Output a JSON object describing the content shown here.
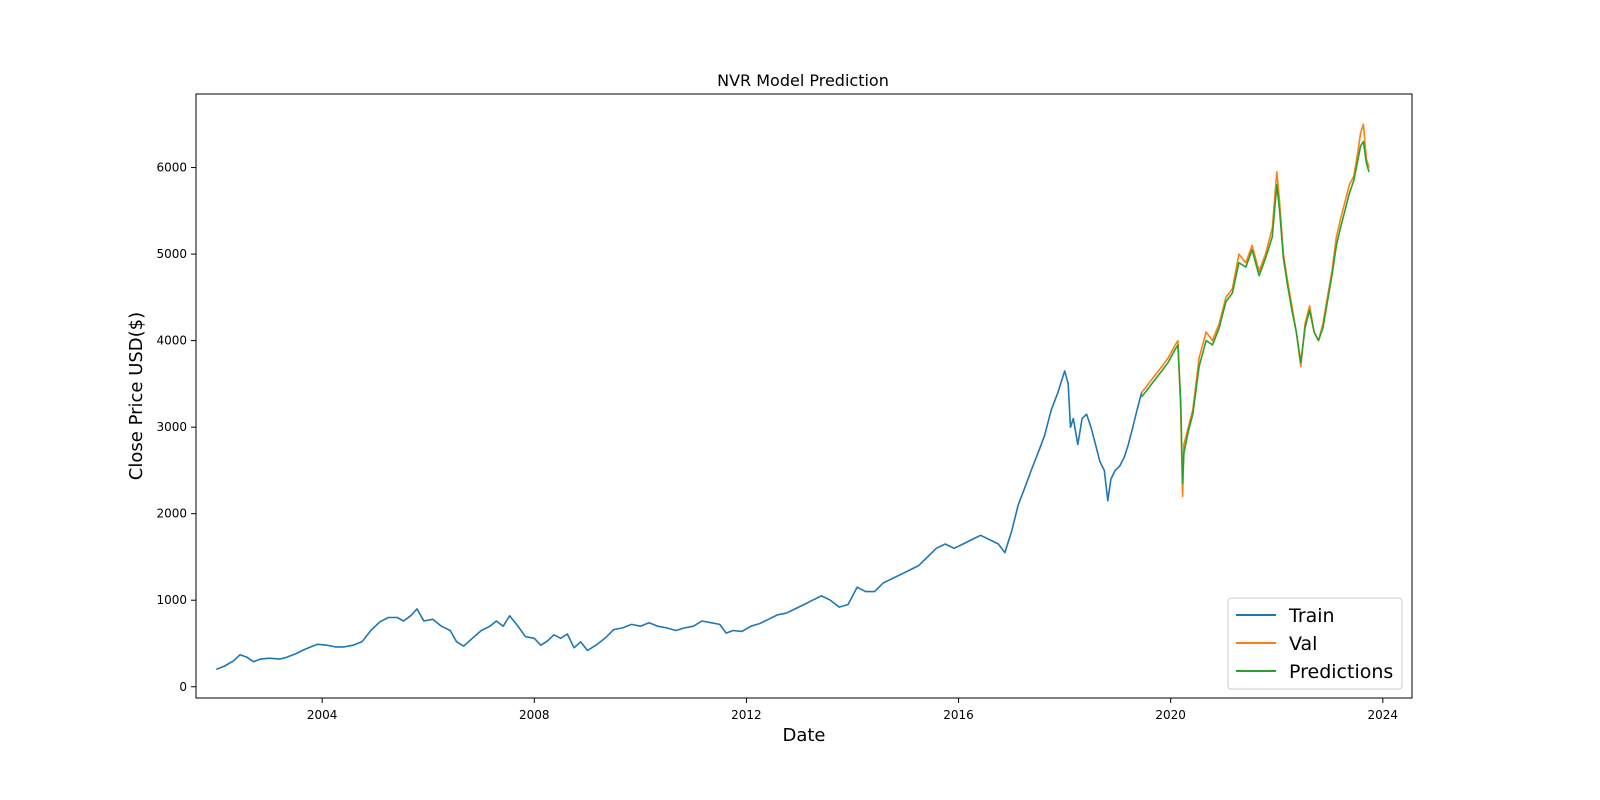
{
  "chart_data": {
    "type": "line",
    "title": "NVR Model Prediction",
    "xlabel": "Date",
    "ylabel": "Close Price USD($)",
    "x_axis_type": "date",
    "xlim": [
      "2001-08-15",
      "2024-07-20"
    ],
    "ylim": [
      -130,
      6850
    ],
    "x_ticks": [
      "2004",
      "2008",
      "2012",
      "2016",
      "2020",
      "2024"
    ],
    "x_tick_dates": [
      "2004-01-01",
      "2008-01-01",
      "2012-01-01",
      "2016-01-01",
      "2020-01-01",
      "2024-01-01"
    ],
    "y_ticks": [
      0,
      1000,
      2000,
      3000,
      4000,
      5000,
      6000
    ],
    "grid": false,
    "legend_position": "lower-right",
    "colors": {
      "Train": "#1f77b4",
      "Val": "#ff7f0e",
      "Predictions": "#2ca02c"
    },
    "series": [
      {
        "name": "Train",
        "x": [
          "2002-01-02",
          "2002-03-01",
          "2002-05-01",
          "2002-06-15",
          "2002-08-01",
          "2002-09-15",
          "2002-11-01",
          "2003-01-01",
          "2003-03-15",
          "2003-05-01",
          "2003-07-01",
          "2003-09-01",
          "2003-10-15",
          "2003-12-01",
          "2004-02-01",
          "2004-04-01",
          "2004-06-01",
          "2004-08-01",
          "2004-10-01",
          "2004-12-01",
          "2005-02-01",
          "2005-04-01",
          "2005-06-01",
          "2005-07-15",
          "2005-09-01",
          "2005-10-15",
          "2005-12-01",
          "2006-02-01",
          "2006-04-01",
          "2006-06-01",
          "2006-07-15",
          "2006-09-01",
          "2006-11-01",
          "2007-01-01",
          "2007-03-01",
          "2007-04-15",
          "2007-06-01",
          "2007-07-15",
          "2007-09-01",
          "2007-11-01",
          "2008-01-01",
          "2008-02-15",
          "2008-04-01",
          "2008-05-15",
          "2008-07-01",
          "2008-08-15",
          "2008-10-01",
          "2008-11-15",
          "2009-01-01",
          "2009-03-01",
          "2009-05-01",
          "2009-07-01",
          "2009-09-01",
          "2009-11-01",
          "2010-01-01",
          "2010-03-01",
          "2010-05-01",
          "2010-07-01",
          "2010-09-01",
          "2010-11-01",
          "2011-01-01",
          "2011-03-01",
          "2011-05-01",
          "2011-07-01",
          "2011-08-15",
          "2011-10-01",
          "2011-12-01",
          "2012-02-01",
          "2012-04-01",
          "2012-06-01",
          "2012-08-01",
          "2012-10-01",
          "2012-12-01",
          "2013-02-01",
          "2013-04-01",
          "2013-06-01",
          "2013-08-01",
          "2013-10-01",
          "2013-12-01",
          "2014-02-01",
          "2014-04-01",
          "2014-06-01",
          "2014-08-01",
          "2014-10-01",
          "2014-12-01",
          "2015-02-01",
          "2015-04-01",
          "2015-06-01",
          "2015-08-01",
          "2015-10-01",
          "2015-12-01",
          "2016-02-01",
          "2016-04-01",
          "2016-06-01",
          "2016-08-01",
          "2016-10-01",
          "2016-11-15",
          "2017-01-01",
          "2017-02-15",
          "2017-04-01",
          "2017-05-15",
          "2017-07-01",
          "2017-08-15",
          "2017-10-01",
          "2017-11-15",
          "2018-01-01",
          "2018-01-25",
          "2018-02-10",
          "2018-03-01",
          "2018-04-01",
          "2018-05-01",
          "2018-06-01",
          "2018-07-01",
          "2018-08-01",
          "2018-09-01",
          "2018-10-01",
          "2018-10-25",
          "2018-11-15",
          "2018-12-15",
          "2019-01-15",
          "2019-02-15",
          "2019-03-15",
          "2019-04-15",
          "2019-05-15",
          "2019-06-15"
        ],
        "y": [
          200,
          240,
          300,
          370,
          340,
          290,
          320,
          330,
          320,
          340,
          380,
          430,
          460,
          490,
          480,
          460,
          460,
          480,
          520,
          650,
          750,
          800,
          800,
          760,
          820,
          900,
          760,
          780,
          700,
          650,
          520,
          470,
          560,
          650,
          700,
          760,
          700,
          820,
          720,
          580,
          560,
          480,
          530,
          600,
          560,
          610,
          450,
          520,
          420,
          480,
          560,
          660,
          680,
          720,
          700,
          740,
          700,
          680,
          650,
          680,
          700,
          760,
          740,
          720,
          620,
          650,
          640,
          700,
          730,
          780,
          830,
          850,
          900,
          950,
          1000,
          1050,
          1000,
          920,
          950,
          1150,
          1100,
          1100,
          1200,
          1250,
          1300,
          1350,
          1400,
          1500,
          1600,
          1650,
          1600,
          1650,
          1700,
          1750,
          1700,
          1650,
          1550,
          1800,
          2100,
          2300,
          2500,
          2700,
          2900,
          3200,
          3400,
          3650,
          3500,
          3000,
          3100,
          2800,
          3100,
          3150,
          3000,
          2800,
          2600,
          2500,
          2150,
          2400,
          2500,
          2550,
          2650,
          2800,
          3000,
          3200,
          3400
        ]
      },
      {
        "name": "Val",
        "x": [
          "2019-06-15",
          "2019-08-01",
          "2019-09-15",
          "2019-11-01",
          "2019-12-15",
          "2020-02-01",
          "2020-02-20",
          "2020-03-10",
          "2020-03-23",
          "2020-04-01",
          "2020-05-01",
          "2020-06-01",
          "2020-07-15",
          "2020-09-01",
          "2020-10-15",
          "2020-12-01",
          "2021-01-15",
          "2021-03-01",
          "2021-04-15",
          "2021-06-01",
          "2021-07-15",
          "2021-09-01",
          "2021-10-15",
          "2021-12-01",
          "2022-01-01",
          "2022-01-20",
          "2022-02-15",
          "2022-03-15",
          "2022-04-15",
          "2022-05-15",
          "2022-06-15",
          "2022-07-15",
          "2022-08-15",
          "2022-09-15",
          "2022-10-15",
          "2022-11-15",
          "2022-12-15",
          "2023-01-15",
          "2023-02-15",
          "2023-03-15",
          "2023-04-15",
          "2023-05-15",
          "2023-06-15",
          "2023-07-15",
          "2023-08-01",
          "2023-08-20",
          "2023-09-10",
          "2023-09-28"
        ],
        "y": [
          3400,
          3500,
          3600,
          3700,
          3800,
          3950,
          4000,
          3200,
          2200,
          2800,
          3000,
          3200,
          3800,
          4100,
          4000,
          4200,
          4500,
          4600,
          5000,
          4900,
          5100,
          4800,
          5000,
          5300,
          5950,
          5600,
          5000,
          4700,
          4400,
          4100,
          3700,
          4200,
          4400,
          4100,
          4000,
          4200,
          4500,
          4800,
          5200,
          5400,
          5600,
          5800,
          5900,
          6200,
          6400,
          6500,
          6100,
          6000
        ]
      },
      {
        "name": "Predictions",
        "x": [
          "2019-06-15",
          "2019-08-01",
          "2019-09-15",
          "2019-11-01",
          "2019-12-15",
          "2020-02-01",
          "2020-02-20",
          "2020-03-10",
          "2020-03-23",
          "2020-04-01",
          "2020-05-01",
          "2020-06-01",
          "2020-07-15",
          "2020-09-01",
          "2020-10-15",
          "2020-12-01",
          "2021-01-15",
          "2021-03-01",
          "2021-04-15",
          "2021-06-01",
          "2021-07-15",
          "2021-09-01",
          "2021-10-15",
          "2021-12-01",
          "2022-01-01",
          "2022-01-20",
          "2022-02-15",
          "2022-03-15",
          "2022-04-15",
          "2022-05-15",
          "2022-06-15",
          "2022-07-15",
          "2022-08-15",
          "2022-09-15",
          "2022-10-15",
          "2022-11-15",
          "2022-12-15",
          "2023-01-15",
          "2023-02-15",
          "2023-03-15",
          "2023-04-15",
          "2023-05-15",
          "2023-06-15",
          "2023-07-15",
          "2023-08-01",
          "2023-08-20",
          "2023-09-10",
          "2023-09-28"
        ],
        "y": [
          3350,
          3450,
          3550,
          3650,
          3750,
          3900,
          3950,
          3300,
          2350,
          2700,
          2950,
          3150,
          3700,
          4000,
          3950,
          4150,
          4450,
          4550,
          4900,
          4850,
          5050,
          4750,
          4950,
          5200,
          5800,
          5500,
          4950,
          4650,
          4350,
          4100,
          3750,
          4150,
          4350,
          4100,
          4000,
          4150,
          4450,
          4750,
          5100,
          5300,
          5500,
          5700,
          5850,
          6100,
          6250,
          6300,
          6050,
          5950
        ]
      }
    ]
  }
}
